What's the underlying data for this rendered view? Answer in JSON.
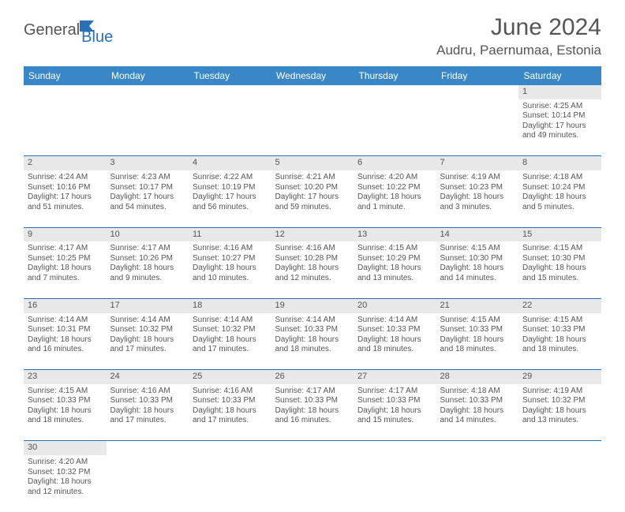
{
  "logo": {
    "part1": "General",
    "part2": "Blue"
  },
  "title": "June 2024",
  "location": "Audru, Paernumaa, Estonia",
  "colors": {
    "header_bg": "#3a87c8",
    "header_text": "#ffffff",
    "daynum_bg": "#e8e8e8",
    "border": "#2a70b8",
    "text": "#555555"
  },
  "dayHeaders": [
    "Sunday",
    "Monday",
    "Tuesday",
    "Wednesday",
    "Thursday",
    "Friday",
    "Saturday"
  ],
  "weeks": [
    {
      "nums": [
        "",
        "",
        "",
        "",
        "",
        "",
        "1"
      ],
      "cells": [
        null,
        null,
        null,
        null,
        null,
        null,
        {
          "sunrise": "Sunrise: 4:25 AM",
          "sunset": "Sunset: 10:14 PM",
          "day1": "Daylight: 17 hours",
          "day2": "and 49 minutes."
        }
      ]
    },
    {
      "nums": [
        "2",
        "3",
        "4",
        "5",
        "6",
        "7",
        "8"
      ],
      "cells": [
        {
          "sunrise": "Sunrise: 4:24 AM",
          "sunset": "Sunset: 10:16 PM",
          "day1": "Daylight: 17 hours",
          "day2": "and 51 minutes."
        },
        {
          "sunrise": "Sunrise: 4:23 AM",
          "sunset": "Sunset: 10:17 PM",
          "day1": "Daylight: 17 hours",
          "day2": "and 54 minutes."
        },
        {
          "sunrise": "Sunrise: 4:22 AM",
          "sunset": "Sunset: 10:19 PM",
          "day1": "Daylight: 17 hours",
          "day2": "and 56 minutes."
        },
        {
          "sunrise": "Sunrise: 4:21 AM",
          "sunset": "Sunset: 10:20 PM",
          "day1": "Daylight: 17 hours",
          "day2": "and 59 minutes."
        },
        {
          "sunrise": "Sunrise: 4:20 AM",
          "sunset": "Sunset: 10:22 PM",
          "day1": "Daylight: 18 hours",
          "day2": "and 1 minute."
        },
        {
          "sunrise": "Sunrise: 4:19 AM",
          "sunset": "Sunset: 10:23 PM",
          "day1": "Daylight: 18 hours",
          "day2": "and 3 minutes."
        },
        {
          "sunrise": "Sunrise: 4:18 AM",
          "sunset": "Sunset: 10:24 PM",
          "day1": "Daylight: 18 hours",
          "day2": "and 5 minutes."
        }
      ]
    },
    {
      "nums": [
        "9",
        "10",
        "11",
        "12",
        "13",
        "14",
        "15"
      ],
      "cells": [
        {
          "sunrise": "Sunrise: 4:17 AM",
          "sunset": "Sunset: 10:25 PM",
          "day1": "Daylight: 18 hours",
          "day2": "and 7 minutes."
        },
        {
          "sunrise": "Sunrise: 4:17 AM",
          "sunset": "Sunset: 10:26 PM",
          "day1": "Daylight: 18 hours",
          "day2": "and 9 minutes."
        },
        {
          "sunrise": "Sunrise: 4:16 AM",
          "sunset": "Sunset: 10:27 PM",
          "day1": "Daylight: 18 hours",
          "day2": "and 10 minutes."
        },
        {
          "sunrise": "Sunrise: 4:16 AM",
          "sunset": "Sunset: 10:28 PM",
          "day1": "Daylight: 18 hours",
          "day2": "and 12 minutes."
        },
        {
          "sunrise": "Sunrise: 4:15 AM",
          "sunset": "Sunset: 10:29 PM",
          "day1": "Daylight: 18 hours",
          "day2": "and 13 minutes."
        },
        {
          "sunrise": "Sunrise: 4:15 AM",
          "sunset": "Sunset: 10:30 PM",
          "day1": "Daylight: 18 hours",
          "day2": "and 14 minutes."
        },
        {
          "sunrise": "Sunrise: 4:15 AM",
          "sunset": "Sunset: 10:30 PM",
          "day1": "Daylight: 18 hours",
          "day2": "and 15 minutes."
        }
      ]
    },
    {
      "nums": [
        "16",
        "17",
        "18",
        "19",
        "20",
        "21",
        "22"
      ],
      "cells": [
        {
          "sunrise": "Sunrise: 4:14 AM",
          "sunset": "Sunset: 10:31 PM",
          "day1": "Daylight: 18 hours",
          "day2": "and 16 minutes."
        },
        {
          "sunrise": "Sunrise: 4:14 AM",
          "sunset": "Sunset: 10:32 PM",
          "day1": "Daylight: 18 hours",
          "day2": "and 17 minutes."
        },
        {
          "sunrise": "Sunrise: 4:14 AM",
          "sunset": "Sunset: 10:32 PM",
          "day1": "Daylight: 18 hours",
          "day2": "and 17 minutes."
        },
        {
          "sunrise": "Sunrise: 4:14 AM",
          "sunset": "Sunset: 10:33 PM",
          "day1": "Daylight: 18 hours",
          "day2": "and 18 minutes."
        },
        {
          "sunrise": "Sunrise: 4:14 AM",
          "sunset": "Sunset: 10:33 PM",
          "day1": "Daylight: 18 hours",
          "day2": "and 18 minutes."
        },
        {
          "sunrise": "Sunrise: 4:15 AM",
          "sunset": "Sunset: 10:33 PM",
          "day1": "Daylight: 18 hours",
          "day2": "and 18 minutes."
        },
        {
          "sunrise": "Sunrise: 4:15 AM",
          "sunset": "Sunset: 10:33 PM",
          "day1": "Daylight: 18 hours",
          "day2": "and 18 minutes."
        }
      ]
    },
    {
      "nums": [
        "23",
        "24",
        "25",
        "26",
        "27",
        "28",
        "29"
      ],
      "cells": [
        {
          "sunrise": "Sunrise: 4:15 AM",
          "sunset": "Sunset: 10:33 PM",
          "day1": "Daylight: 18 hours",
          "day2": "and 18 minutes."
        },
        {
          "sunrise": "Sunrise: 4:16 AM",
          "sunset": "Sunset: 10:33 PM",
          "day1": "Daylight: 18 hours",
          "day2": "and 17 minutes."
        },
        {
          "sunrise": "Sunrise: 4:16 AM",
          "sunset": "Sunset: 10:33 PM",
          "day1": "Daylight: 18 hours",
          "day2": "and 17 minutes."
        },
        {
          "sunrise": "Sunrise: 4:17 AM",
          "sunset": "Sunset: 10:33 PM",
          "day1": "Daylight: 18 hours",
          "day2": "and 16 minutes."
        },
        {
          "sunrise": "Sunrise: 4:17 AM",
          "sunset": "Sunset: 10:33 PM",
          "day1": "Daylight: 18 hours",
          "day2": "and 15 minutes."
        },
        {
          "sunrise": "Sunrise: 4:18 AM",
          "sunset": "Sunset: 10:33 PM",
          "day1": "Daylight: 18 hours",
          "day2": "and 14 minutes."
        },
        {
          "sunrise": "Sunrise: 4:19 AM",
          "sunset": "Sunset: 10:32 PM",
          "day1": "Daylight: 18 hours",
          "day2": "and 13 minutes."
        }
      ]
    },
    {
      "nums": [
        "30",
        "",
        "",
        "",
        "",
        "",
        ""
      ],
      "cells": [
        {
          "sunrise": "Sunrise: 4:20 AM",
          "sunset": "Sunset: 10:32 PM",
          "day1": "Daylight: 18 hours",
          "day2": "and 12 minutes."
        },
        null,
        null,
        null,
        null,
        null,
        null
      ]
    }
  ]
}
